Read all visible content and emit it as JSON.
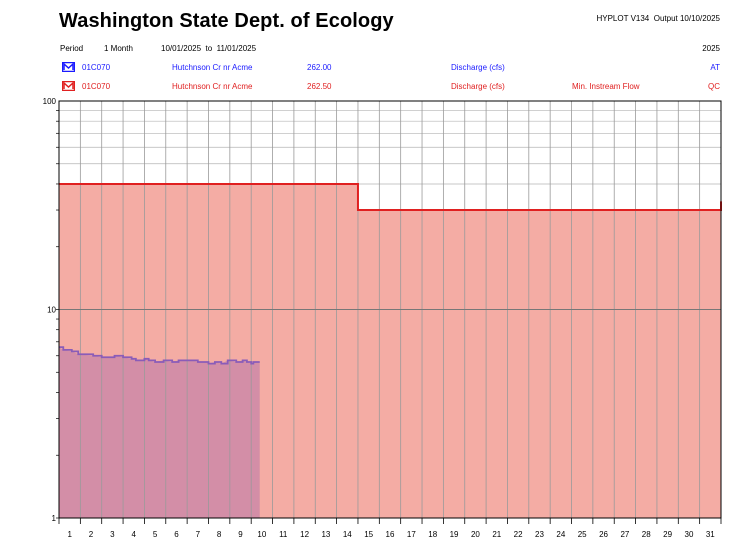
{
  "header": {
    "agency": "Washington State Dept. of Ecology",
    "program": "HYPLOT V134",
    "output": "Output 10/10/2025",
    "period_label": "Period",
    "period_length": "1 Month",
    "date_from": "10/01/2025",
    "date_to_sep": "to",
    "date_to": "11/01/2025",
    "year": "2025"
  },
  "legend": [
    {
      "station": "01C070",
      "name": "Hutchnson Cr nr Acme",
      "variable_code": "262.00",
      "parameter": "Discharge (cfs)",
      "note": "",
      "qc": "AT",
      "color": "#1a1aff",
      "icon": "m-box-blue-icon"
    },
    {
      "station": "01C070",
      "name": "Hutchnson Cr nr Acme",
      "variable_code": "262.50",
      "parameter": "Discharge (cfs)",
      "note": "Min. Instream Flow",
      "qc": "QC",
      "color": "#e02020",
      "icon": "m-box-red-icon"
    }
  ],
  "chart_data": {
    "type": "area",
    "y_scale": "log",
    "ylim": [
      1,
      100
    ],
    "y_tick_labels": [
      "1",
      "10",
      "100"
    ],
    "x_tick_labels": [
      "1",
      "2",
      "3",
      "4",
      "5",
      "6",
      "7",
      "8",
      "9",
      "10",
      "11",
      "12",
      "13",
      "14",
      "15",
      "16",
      "17",
      "18",
      "19",
      "20",
      "21",
      "22",
      "23",
      "24",
      "25",
      "26",
      "27",
      "28",
      "29",
      "30",
      "31"
    ],
    "grid": true,
    "series": [
      {
        "name": "Discharge (cfs)",
        "color": "#8a5cb8",
        "fill": "#cc88a8",
        "points": [
          [
            1.0,
            6.6
          ],
          [
            1.2,
            6.4
          ],
          [
            1.6,
            6.3
          ],
          [
            1.9,
            6.1
          ],
          [
            2.6,
            6.0
          ],
          [
            3.0,
            5.9
          ],
          [
            3.5,
            5.9
          ],
          [
            3.6,
            6.0
          ],
          [
            4.0,
            5.9
          ],
          [
            4.4,
            5.8
          ],
          [
            4.6,
            5.7
          ],
          [
            4.9,
            5.7
          ],
          [
            5.0,
            5.8
          ],
          [
            5.2,
            5.7
          ],
          [
            5.5,
            5.6
          ],
          [
            5.9,
            5.7
          ],
          [
            6.3,
            5.6
          ],
          [
            6.6,
            5.7
          ],
          [
            7.0,
            5.7
          ],
          [
            7.3,
            5.7
          ],
          [
            7.5,
            5.6
          ],
          [
            7.9,
            5.6
          ],
          [
            8.0,
            5.5
          ],
          [
            8.3,
            5.6
          ],
          [
            8.6,
            5.5
          ],
          [
            8.9,
            5.7
          ],
          [
            9.3,
            5.6
          ],
          [
            9.6,
            5.7
          ],
          [
            9.8,
            5.6
          ],
          [
            10.0,
            5.5
          ],
          [
            10.1,
            5.6
          ],
          [
            10.4,
            5.6
          ]
        ]
      },
      {
        "name": "Min. Instream Flow",
        "color": "#e02020",
        "fill": "#f4aca4",
        "points": [
          [
            1,
            40
          ],
          [
            15,
            40
          ],
          [
            15,
            30
          ],
          [
            32,
            30
          ],
          [
            32,
            33
          ]
        ]
      }
    ]
  }
}
